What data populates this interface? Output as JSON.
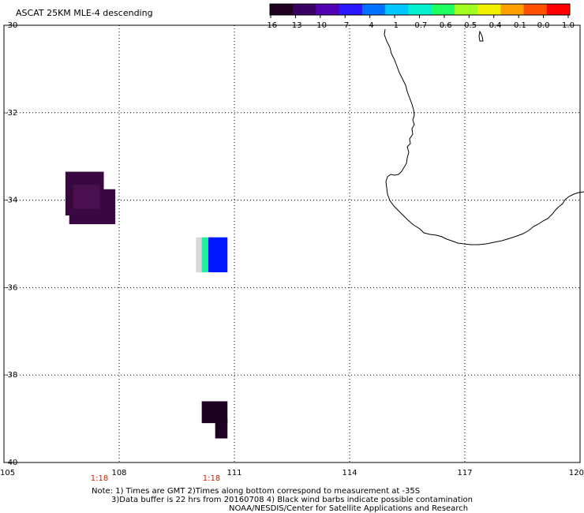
{
  "title": "ASCAT 25KM MLE-4 descending",
  "colorbar": {
    "tick_labels": [
      "-16",
      "-13",
      "-10",
      "-7",
      "-4",
      "-1",
      "-0.7",
      "-0.6",
      "-0.5",
      "-0.4",
      "-0.1",
      "0.0",
      "1.0"
    ],
    "colors": [
      "#200020",
      "#3b0064",
      "#5200b4",
      "#2a18ff",
      "#0070ff",
      "#00c8ff",
      "#00f0d0",
      "#20ff60",
      "#a0ff20",
      "#f0f000",
      "#ffa000",
      "#ff5000",
      "#ff0000"
    ]
  },
  "axes": {
    "lat_labels": [
      "-30",
      "-32",
      "-34",
      "-36",
      "-38",
      "-40"
    ],
    "lon_labels": [
      "105",
      "108",
      "111",
      "114",
      "117",
      "120"
    ],
    "lat_range": [
      -40,
      -30
    ],
    "lon_range": [
      105,
      120
    ],
    "grid": "dotted"
  },
  "time_labels": [
    "1:18",
    "1:18"
  ],
  "time_label_color": "#cc2200",
  "pixels": [
    {
      "lon1": 106.6,
      "lon2": 107.6,
      "lat1": -34.35,
      "lat2": -33.35,
      "color": "#3a0840"
    },
    {
      "lon1": 106.7,
      "lon2": 107.9,
      "lat1": -34.55,
      "lat2": -33.75,
      "color": "#3a0840"
    },
    {
      "lon1": 106.8,
      "lon2": 107.5,
      "lat1": -34.2,
      "lat2": -33.65,
      "color": "#4a1050"
    },
    {
      "lon1": 110.0,
      "lon2": 110.2,
      "lat1": -35.65,
      "lat2": -34.85,
      "color": "#d8d8d8"
    },
    {
      "lon1": 110.15,
      "lon2": 110.32,
      "lat1": -35.65,
      "lat2": -34.85,
      "color": "#20f0a0"
    },
    {
      "lon1": 110.32,
      "lon2": 110.82,
      "lat1": -35.65,
      "lat2": -34.85,
      "color": "#0018ff"
    },
    {
      "lon1": 110.15,
      "lon2": 110.82,
      "lat1": -39.1,
      "lat2": -38.6,
      "color": "#1e0022"
    },
    {
      "lon1": 110.5,
      "lon2": 110.82,
      "lat1": -39.45,
      "lat2": -39.0,
      "color": "#1e0022"
    }
  ],
  "notes": [
    "Note: 1) Times are GMT 2)Times along bottom correspond to measurement at -35S",
    "3)Data buffer is 22 hrs from 20160708 4) Black wind barbs indicate possible contamination",
    "NOAA/NESDIS/Center for Satellite Applications and Research"
  ]
}
